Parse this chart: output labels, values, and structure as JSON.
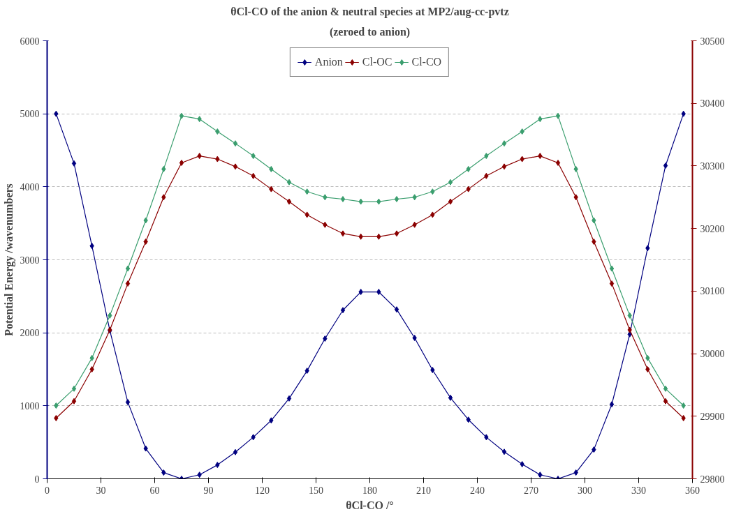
{
  "chart_data": {
    "type": "line",
    "title": "θCl-CO of the anion & neutral species at MP2/aug-cc-pvtz",
    "subtitle": "(zeroed to anion)",
    "xlabel": "θCl-CO /°",
    "ylabel": "Potential Energy /wavenumbers",
    "x": [
      5,
      15,
      25,
      35,
      45,
      55,
      65,
      75,
      85,
      95,
      105,
      115,
      125,
      135,
      145,
      155,
      165,
      175,
      185,
      195,
      205,
      215,
      225,
      235,
      245,
      255,
      265,
      275,
      285,
      295,
      305,
      315,
      325,
      335,
      345,
      355
    ],
    "series": [
      {
        "name": "Anion",
        "color": "#000080",
        "values": [
          5000,
          4320,
          3190,
          2030,
          1050,
          415,
          85,
          0,
          55,
          190,
          365,
          570,
          800,
          1100,
          1480,
          1920,
          2310,
          2560,
          2560,
          2320,
          1930,
          1490,
          1110,
          810,
          570,
          370,
          200,
          55,
          0,
          85,
          400,
          1020,
          1980,
          3160,
          4290,
          5000
        ]
      },
      {
        "name": "Cl-OC",
        "color": "#8b0000",
        "axis": "y2",
        "values": [
          29897,
          29924,
          29975,
          30038,
          30112,
          30179,
          30250,
          30305,
          30316,
          30311,
          30299,
          30284,
          30263,
          30243,
          30222,
          30206,
          30192,
          30187,
          30187,
          30192,
          30206,
          30222,
          30243,
          30263,
          30284,
          30299,
          30311,
          30316,
          30305,
          30250,
          30179,
          30112,
          30038,
          29975,
          29924,
          29897
        ]
      },
      {
        "name": "Cl-CO",
        "color": "#3a9e6e",
        "axis": "y2",
        "values": [
          29917,
          29944,
          29993,
          30061,
          30136,
          30213,
          30295,
          30380,
          30375,
          30355,
          30336,
          30316,
          30295,
          30274,
          30259,
          30250,
          30247,
          30243,
          30243,
          30247,
          30250,
          30259,
          30274,
          30295,
          30316,
          30336,
          30355,
          30375,
          30380,
          30295,
          30213,
          30136,
          30061,
          29993,
          29944,
          29917
        ]
      }
    ],
    "xlim": [
      0,
      360
    ],
    "xticks": [
      0,
      30,
      60,
      90,
      120,
      150,
      180,
      210,
      240,
      270,
      300,
      330,
      360
    ],
    "ylim": [
      0,
      6000
    ],
    "yticks": [
      0,
      1000,
      2000,
      3000,
      4000,
      5000,
      6000
    ],
    "y2lim": [
      29800,
      30500
    ],
    "y2ticks": [
      29800,
      29900,
      30000,
      30100,
      30200,
      30300,
      30400,
      30500
    ],
    "grid": "y",
    "legend": "top",
    "marker": "diamond",
    "line_style": "solid"
  }
}
